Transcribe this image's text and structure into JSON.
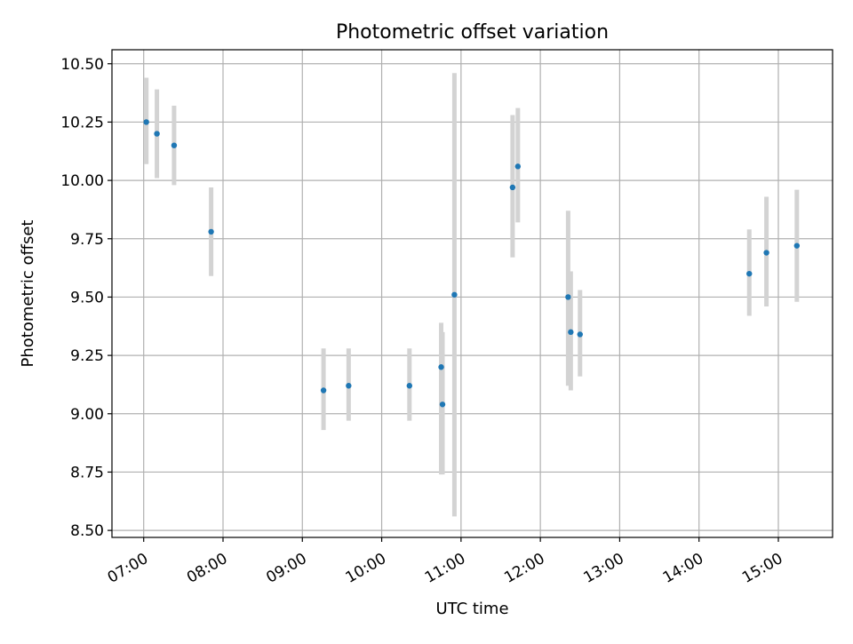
{
  "chart_data": {
    "type": "scatter",
    "title": "Photometric offset variation",
    "xlabel": "UTC time",
    "ylabel": "Photometric offset",
    "x_tick_labels": [
      "07:00",
      "08:00",
      "09:00",
      "10:00",
      "11:00",
      "12:00",
      "13:00",
      "14:00",
      "15:00"
    ],
    "y_tick_labels": [
      "8.50",
      "8.75",
      "9.00",
      "9.25",
      "9.50",
      "9.75",
      "10.00",
      "10.25",
      "10.50"
    ],
    "xlim": [
      "06:36",
      "15:41"
    ],
    "ylim": [
      8.47,
      10.56
    ],
    "grid": true,
    "legend": false,
    "colors": {
      "marker": "#1f77b4",
      "errorbar": "#d3d3d3",
      "grid": "#b0b0b0"
    },
    "points": [
      {
        "x": "07:02",
        "y": 10.25,
        "y_low": 10.07,
        "y_high": 10.44
      },
      {
        "x": "07:10",
        "y": 10.2,
        "y_low": 10.01,
        "y_high": 10.39
      },
      {
        "x": "07:23",
        "y": 10.15,
        "y_low": 9.98,
        "y_high": 10.32
      },
      {
        "x": "07:51",
        "y": 9.78,
        "y_low": 9.59,
        "y_high": 9.97
      },
      {
        "x": "09:16",
        "y": 9.1,
        "y_low": 8.93,
        "y_high": 9.28
      },
      {
        "x": "09:35",
        "y": 9.12,
        "y_low": 8.97,
        "y_high": 9.28
      },
      {
        "x": "10:21",
        "y": 9.12,
        "y_low": 8.97,
        "y_high": 9.28
      },
      {
        "x": "10:45",
        "y": 9.2,
        "y_low": 8.74,
        "y_high": 9.39
      },
      {
        "x": "10:46",
        "y": 9.04,
        "y_low": 8.74,
        "y_high": 9.35
      },
      {
        "x": "10:55",
        "y": 9.51,
        "y_low": 8.56,
        "y_high": 10.46
      },
      {
        "x": "11:39",
        "y": 9.97,
        "y_low": 9.67,
        "y_high": 10.28
      },
      {
        "x": "11:43",
        "y": 10.06,
        "y_low": 9.82,
        "y_high": 10.31
      },
      {
        "x": "12:21",
        "y": 9.5,
        "y_low": 9.12,
        "y_high": 9.87
      },
      {
        "x": "12:23",
        "y": 9.35,
        "y_low": 9.1,
        "y_high": 9.61
      },
      {
        "x": "12:30",
        "y": 9.34,
        "y_low": 9.16,
        "y_high": 9.53
      },
      {
        "x": "14:38",
        "y": 9.6,
        "y_low": 9.42,
        "y_high": 9.79
      },
      {
        "x": "14:51",
        "y": 9.69,
        "y_low": 9.46,
        "y_high": 9.93
      },
      {
        "x": "15:14",
        "y": 9.72,
        "y_low": 9.48,
        "y_high": 9.96
      }
    ]
  }
}
